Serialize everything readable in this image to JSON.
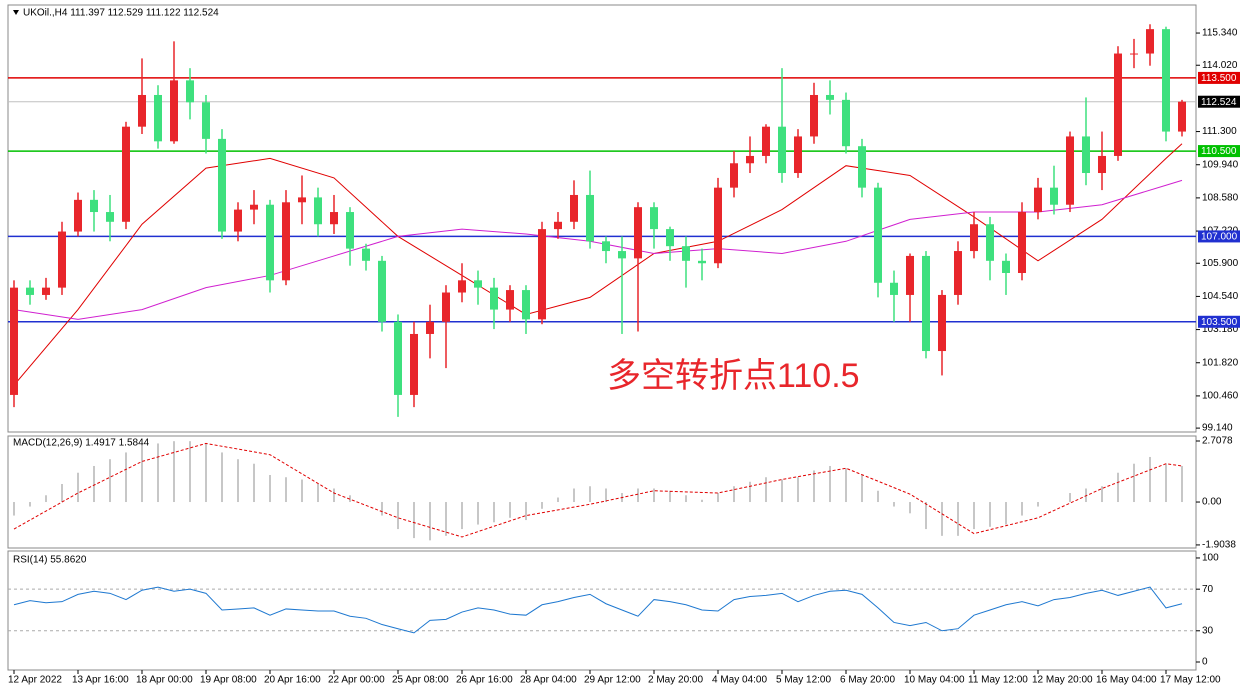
{
  "chart_data": [
    {
      "type": "candlestick",
      "header": "UKOil.,H4  111.397 112.529 111.122 112.524",
      "annotation": "多空转折点110.5",
      "bull_color": "#e8262b",
      "bear_color": "#3ee07e",
      "ylim": [
        98.98,
        116.49
      ],
      "yticks": [
        {
          "value": 115.34,
          "label": "115.340"
        },
        {
          "value": 114.02,
          "label": "114.020"
        },
        {
          "value": 111.3,
          "label": "111.300"
        },
        {
          "value": 109.94,
          "label": "109.940"
        },
        {
          "value": 108.58,
          "label": "108.580"
        },
        {
          "value": 107.22,
          "label": "107.220"
        },
        {
          "value": 105.9,
          "label": "105.900"
        },
        {
          "value": 104.54,
          "label": "104.540"
        },
        {
          "value": 103.18,
          "label": "103.180"
        },
        {
          "value": 101.82,
          "label": "101.820"
        },
        {
          "value": 100.46,
          "label": "100.460"
        },
        {
          "value": 99.14,
          "label": "99.140"
        }
      ],
      "levels": [
        {
          "value": 113.5,
          "label": "113.500",
          "color": "#e00000"
        },
        {
          "value": 112.524,
          "label": "112.524",
          "color": "#c0c0c0"
        },
        {
          "value": 110.5,
          "label": "110.500",
          "color": "#00c000"
        },
        {
          "value": 107.0,
          "label": "107.000",
          "color": "#2030d0"
        },
        {
          "value": 103.5,
          "label": "103.500",
          "color": "#2030d0"
        }
      ],
      "categories": [
        "12 Apr 2022",
        null,
        null,
        null,
        "13 Apr 16:00",
        null,
        null,
        null,
        "18 Apr 00:00",
        null,
        null,
        null,
        "19 Apr 08:00",
        null,
        null,
        null,
        "20 Apr 16:00",
        null,
        null,
        null,
        "22 Apr 00:00",
        null,
        null,
        null,
        "25 Apr 08:00",
        null,
        null,
        null,
        "26 Apr 16:00",
        null,
        null,
        null,
        "28 Apr 04:00",
        null,
        null,
        null,
        "29 Apr 12:00",
        null,
        null,
        null,
        "2 May 20:00",
        null,
        null,
        null,
        "4 May 04:00",
        null,
        null,
        null,
        "5 May 12:00",
        null,
        null,
        null,
        "6 May 20:00",
        null,
        null,
        null,
        "10 May 04:00",
        null,
        null,
        null,
        "11 May 12:00",
        null,
        null,
        null,
        "12 May 20:00",
        null,
        null,
        null,
        "16 May 04:00",
        null,
        null,
        null,
        "17 May 12:00",
        null
      ],
      "ohlc": [
        [
          100.5,
          105.2,
          100.0,
          104.9
        ],
        [
          104.9,
          105.2,
          104.2,
          104.6
        ],
        [
          104.6,
          105.3,
          104.4,
          104.9
        ],
        [
          104.9,
          107.6,
          104.6,
          107.2
        ],
        [
          107.2,
          108.8,
          107.0,
          108.5
        ],
        [
          108.5,
          108.9,
          107.2,
          108.0
        ],
        [
          108.0,
          108.7,
          106.8,
          107.6
        ],
        [
          107.6,
          111.7,
          107.3,
          111.5
        ],
        [
          111.5,
          114.3,
          111.2,
          112.8
        ],
        [
          112.8,
          113.2,
          110.6,
          110.9
        ],
        [
          110.9,
          115.0,
          110.8,
          113.4
        ],
        [
          113.4,
          113.9,
          111.8,
          112.5
        ],
        [
          112.5,
          112.8,
          110.4,
          111.0
        ],
        [
          111.0,
          111.4,
          106.9,
          107.2
        ],
        [
          107.2,
          108.4,
          106.8,
          108.1
        ],
        [
          108.1,
          108.9,
          107.5,
          108.3
        ],
        [
          108.3,
          108.5,
          104.7,
          105.2
        ],
        [
          105.2,
          108.9,
          105.0,
          108.4
        ],
        [
          108.4,
          109.5,
          107.5,
          108.6
        ],
        [
          108.6,
          109.0,
          107.0,
          107.5
        ],
        [
          107.5,
          108.7,
          107.1,
          108.0
        ],
        [
          108.0,
          108.2,
          105.8,
          106.5
        ],
        [
          106.5,
          106.7,
          105.6,
          106.0
        ],
        [
          106.0,
          106.2,
          103.1,
          103.5
        ],
        [
          103.5,
          103.8,
          99.6,
          100.5
        ],
        [
          100.5,
          103.5,
          100.0,
          103.0
        ],
        [
          103.0,
          104.2,
          102.0,
          103.5
        ],
        [
          103.5,
          105.0,
          101.6,
          104.7
        ],
        [
          104.7,
          105.9,
          104.3,
          105.2
        ],
        [
          105.2,
          105.6,
          104.2,
          104.9
        ],
        [
          104.9,
          105.3,
          103.2,
          104.0
        ],
        [
          104.0,
          105.0,
          103.5,
          104.8
        ],
        [
          104.8,
          105.0,
          103.0,
          103.6
        ],
        [
          103.6,
          107.6,
          103.4,
          107.3
        ],
        [
          107.3,
          108.0,
          106.9,
          107.6
        ],
        [
          107.6,
          109.3,
          107.3,
          108.7
        ],
        [
          108.7,
          109.7,
          106.5,
          106.8
        ],
        [
          106.8,
          107.0,
          105.9,
          106.4
        ],
        [
          106.4,
          107.0,
          103.0,
          106.1
        ],
        [
          106.1,
          108.4,
          103.1,
          108.2
        ],
        [
          108.2,
          108.4,
          106.5,
          107.3
        ],
        [
          107.3,
          107.4,
          106.0,
          106.6
        ],
        [
          106.6,
          107.0,
          104.9,
          106.0
        ],
        [
          106.0,
          106.5,
          105.2,
          105.9
        ],
        [
          105.9,
          109.4,
          105.7,
          109.0
        ],
        [
          109.0,
          110.5,
          108.6,
          110.0
        ],
        [
          110.0,
          111.1,
          109.6,
          110.3
        ],
        [
          110.3,
          111.6,
          110.0,
          111.5
        ],
        [
          111.5,
          113.9,
          109.2,
          109.6
        ],
        [
          109.6,
          111.4,
          109.4,
          111.1
        ],
        [
          111.1,
          113.3,
          110.8,
          112.8
        ],
        [
          112.8,
          113.4,
          112.0,
          112.6
        ],
        [
          112.6,
          112.9,
          110.4,
          110.7
        ],
        [
          110.7,
          111.0,
          108.6,
          109.0
        ],
        [
          109.0,
          109.2,
          104.5,
          105.1
        ],
        [
          105.1,
          105.6,
          103.5,
          104.6
        ],
        [
          104.6,
          106.3,
          103.5,
          106.2
        ],
        [
          106.2,
          106.4,
          102.0,
          102.3
        ],
        [
          102.3,
          104.8,
          101.3,
          104.6
        ],
        [
          104.6,
          106.8,
          104.2,
          106.4
        ],
        [
          106.4,
          108.0,
          106.1,
          107.5
        ],
        [
          107.5,
          107.8,
          105.2,
          106.0
        ],
        [
          106.0,
          106.3,
          104.6,
          105.5
        ],
        [
          105.5,
          108.4,
          105.2,
          108.0
        ],
        [
          108.0,
          109.4,
          107.7,
          109.0
        ],
        [
          109.0,
          109.9,
          107.9,
          108.3
        ],
        [
          108.3,
          111.3,
          108.0,
          111.1
        ],
        [
          111.1,
          112.7,
          109.1,
          109.6
        ],
        [
          109.6,
          111.3,
          108.9,
          110.3
        ],
        [
          110.3,
          114.8,
          110.1,
          114.5
        ],
        [
          114.5,
          115.1,
          113.9,
          114.5
        ],
        [
          114.5,
          115.7,
          114.0,
          115.5
        ],
        [
          115.5,
          115.6,
          110.9,
          111.3
        ],
        [
          111.3,
          112.6,
          111.1,
          112.524
        ]
      ],
      "lines": [
        {
          "color": "#e00000",
          "x": [
            0,
            4,
            8,
            12,
            16,
            20,
            24,
            28,
            32,
            36,
            40,
            44,
            48,
            52,
            56,
            60,
            64,
            68,
            72,
            73
          ],
          "values": [
            100.9,
            104.0,
            107.5,
            109.8,
            110.2,
            109.4,
            107.0,
            105.4,
            103.8,
            104.5,
            106.3,
            106.8,
            108.1,
            109.9,
            109.5,
            107.8,
            106.0,
            107.7,
            110.2,
            110.8
          ]
        },
        {
          "color": "#d020d0",
          "x": [
            0,
            4,
            8,
            12,
            16,
            20,
            24,
            28,
            32,
            36,
            40,
            44,
            48,
            52,
            56,
            60,
            64,
            68,
            72,
            73
          ],
          "values": [
            104.0,
            103.6,
            104.0,
            104.9,
            105.4,
            106.2,
            107.0,
            107.3,
            107.1,
            106.8,
            106.3,
            106.5,
            106.3,
            106.8,
            107.7,
            108.0,
            108.0,
            108.3,
            109.1,
            109.3
          ]
        }
      ]
    },
    {
      "type": "bar",
      "title": "MACD(12,26,9) 1.4917 1.5844",
      "color": "#b4b4b4",
      "ylim": [
        -2.04,
        2.93
      ],
      "yticks": [
        2.7078,
        {
          "value": 0,
          "label": "0.00"
        },
        -1.9038
      ],
      "values": [
        -0.6,
        -0.2,
        0.3,
        0.8,
        1.3,
        1.6,
        1.9,
        2.2,
        2.5,
        2.6,
        2.7,
        2.7,
        2.6,
        2.2,
        1.9,
        1.7,
        1.2,
        1.1,
        1.0,
        0.8,
        0.6,
        0.3,
        0.0,
        -0.6,
        -1.2,
        -1.6,
        -1.7,
        -1.5,
        -1.2,
        -1.0,
        -0.9,
        -0.7,
        -0.8,
        -0.3,
        0.2,
        0.6,
        0.7,
        0.6,
        0.4,
        0.6,
        0.6,
        0.5,
        0.3,
        0.1,
        0.4,
        0.7,
        0.9,
        1.1,
        1.0,
        1.1,
        1.4,
        1.6,
        1.5,
        1.2,
        0.5,
        -0.2,
        -0.5,
        -1.2,
        -1.5,
        -1.5,
        -1.2,
        -1.1,
        -1.0,
        -0.6,
        -0.2,
        0.0,
        0.4,
        0.6,
        0.7,
        1.3,
        1.7,
        2.0,
        1.7,
        1.6
      ],
      "signal": {
        "color": "#e00000",
        "x": [
          0,
          4,
          8,
          12,
          16,
          20,
          24,
          28,
          32,
          36,
          40,
          44,
          48,
          52,
          56,
          60,
          64,
          68,
          72,
          73
        ],
        "values": [
          -1.2,
          0.4,
          1.8,
          2.6,
          2.1,
          0.4,
          -0.7,
          -1.55,
          -0.6,
          -0.1,
          0.5,
          0.4,
          1.0,
          1.5,
          0.35,
          -1.4,
          -0.7,
          0.6,
          1.7,
          1.6
        ]
      }
    },
    {
      "type": "line",
      "title": "RSI(14) 55.8620",
      "color": "#1e78d0",
      "ylim": [
        -7.7,
        106.7
      ],
      "yticks": [
        100,
        70,
        30,
        0
      ],
      "dashed_levels": [
        70,
        30
      ],
      "values": [
        55,
        59,
        57,
        58,
        65,
        68,
        66,
        60,
        69,
        72,
        68,
        70,
        66,
        50,
        51,
        52,
        45,
        51,
        50,
        49,
        49,
        44,
        42,
        36,
        32,
        28,
        40,
        41,
        48,
        52,
        50,
        46,
        45,
        55,
        58,
        62,
        65,
        56,
        50,
        44,
        60,
        58,
        55,
        50,
        49,
        60,
        63,
        64,
        66,
        58,
        64,
        68,
        69,
        65,
        52,
        38,
        35,
        38,
        30,
        32,
        45,
        50,
        55,
        58,
        54,
        60,
        62,
        66,
        69,
        64,
        68,
        72,
        52,
        56
      ]
    }
  ]
}
